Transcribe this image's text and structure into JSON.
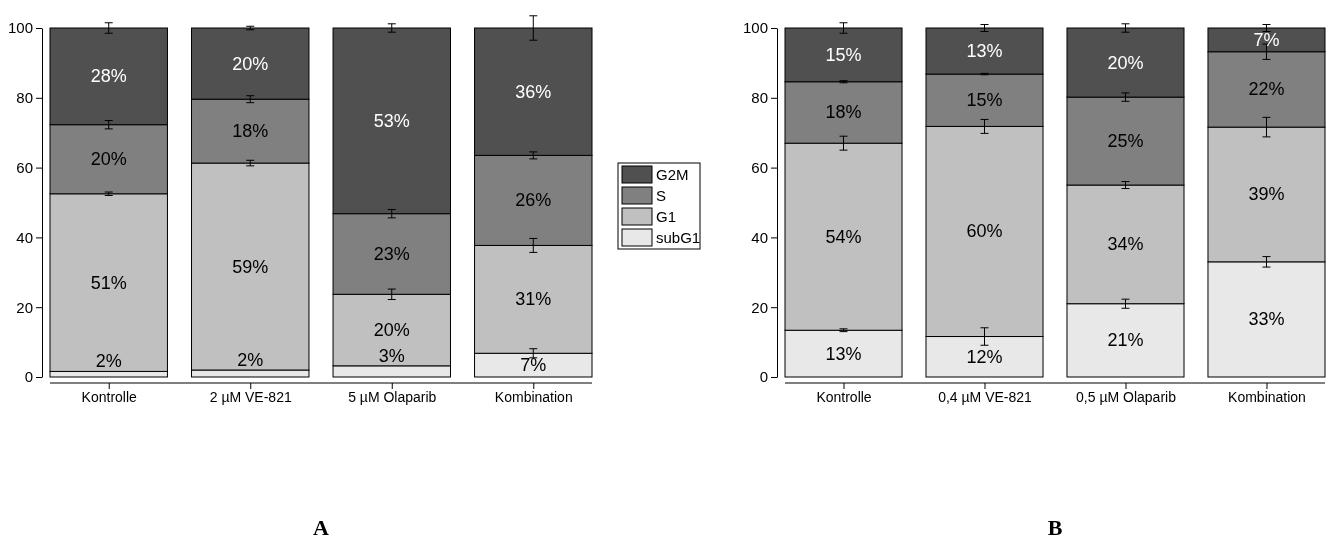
{
  "chart_data": [
    {
      "type": "bar",
      "title": "A",
      "stacked": true,
      "categories": [
        "Kontrolle",
        "2 µM VE-821",
        "5 µM Olaparib",
        "Kombination"
      ],
      "ylim": [
        0,
        100
      ],
      "yticks": [
        0,
        20,
        40,
        60,
        80,
        100
      ],
      "legend": "right",
      "series": [
        {
          "name": "subG1",
          "color": "#e8e8e8",
          "values": [
            1.6,
            2.0,
            3.2,
            6.8
          ],
          "value_labels": [
            "2%",
            "2%",
            "3%",
            "7%"
          ],
          "errors": [
            null,
            null,
            null,
            1.3
          ]
        },
        {
          "name": "G1",
          "color": "#c0c0c0",
          "values": [
            50.9,
            59.3,
            20.5,
            30.9
          ],
          "value_labels": [
            "51%",
            "59%",
            "20%",
            "31%"
          ],
          "errors": [
            0.5,
            0.8,
            1.5,
            2
          ]
        },
        {
          "name": "S",
          "color": "#808080",
          "values": [
            19.8,
            18.3,
            23.1,
            25.8
          ],
          "value_labels": [
            "20%",
            "18%",
            "23%",
            "26%"
          ],
          "errors": [
            1.2,
            1,
            1.2,
            1
          ]
        },
        {
          "name": "G2M",
          "color": "#505050",
          "values": [
            27.7,
            20.4,
            53.2,
            36.5
          ],
          "value_labels": [
            "28%",
            "20%",
            "53%",
            "36%"
          ],
          "errors": [
            1.5,
            0.5,
            1.2,
            3.5
          ]
        }
      ]
    },
    {
      "type": "bar",
      "title": "B",
      "stacked": true,
      "categories": [
        "Kontrolle",
        "0,4 µM VE-821",
        "0,5 µM Olaparib",
        "Kombination"
      ],
      "ylim": [
        0,
        100
      ],
      "yticks": [
        0,
        20,
        40,
        60,
        80,
        100
      ],
      "series": [
        {
          "color": "#e8e8e8",
          "values": [
            13.4,
            11.6,
            21,
            33
          ],
          "value_labels": [
            "13%",
            "12%",
            "21%",
            "33%"
          ],
          "errors": [
            0.4,
            2.5,
            1.3,
            1.5
          ]
        },
        {
          "color": "#c0c0c0",
          "values": [
            53.6,
            60.2,
            34,
            38.6
          ],
          "value_labels": [
            "54%",
            "60%",
            "34%",
            "39%"
          ],
          "errors": [
            2,
            2,
            1,
            2.8
          ]
        },
        {
          "color": "#808080",
          "values": [
            17.6,
            15,
            25.2,
            21.6
          ],
          "value_labels": [
            "18%",
            "15%",
            "25%",
            "22%"
          ],
          "errors": [
            0.3,
            0.2,
            1.2,
            2.2
          ]
        },
        {
          "color": "#505050",
          "values": [
            15.4,
            13.2,
            19.8,
            6.8
          ],
          "value_labels": [
            "15%",
            "13%",
            "20%",
            "7%"
          ],
          "errors": [
            1.5,
            1,
            1.2,
            1
          ]
        }
      ]
    }
  ]
}
